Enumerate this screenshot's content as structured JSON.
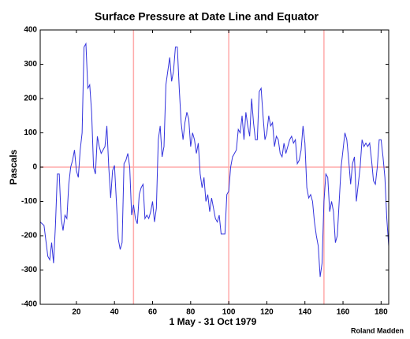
{
  "chart_data": {
    "type": "line",
    "title": "Surface Pressure at Date Line and Equator",
    "x_label": "1 May - 31 Oct 1979",
    "y_label": "Pascals",
    "annotation": "Roland Madden",
    "x": [
      1,
      2,
      3,
      4,
      5,
      6,
      7,
      8,
      9,
      10,
      11,
      12,
      13,
      14,
      15,
      16,
      17,
      18,
      19,
      20,
      21,
      22,
      23,
      24,
      25,
      26,
      27,
      28,
      29,
      30,
      31,
      32,
      33,
      34,
      35,
      36,
      37,
      38,
      39,
      40,
      41,
      42,
      43,
      44,
      45,
      46,
      47,
      48,
      49,
      50,
      51,
      52,
      53,
      54,
      55,
      56,
      57,
      58,
      59,
      60,
      61,
      62,
      63,
      64,
      65,
      66,
      67,
      68,
      69,
      70,
      71,
      72,
      73,
      74,
      75,
      76,
      77,
      78,
      79,
      80,
      81,
      82,
      83,
      84,
      85,
      86,
      87,
      88,
      89,
      90,
      91,
      92,
      93,
      94,
      95,
      96,
      97,
      98,
      99,
      100,
      101,
      102,
      103,
      104,
      105,
      106,
      107,
      108,
      109,
      110,
      111,
      112,
      113,
      114,
      115,
      116,
      117,
      118,
      119,
      120,
      121,
      122,
      123,
      124,
      125,
      126,
      127,
      128,
      129,
      130,
      131,
      132,
      133,
      134,
      135,
      136,
      137,
      138,
      139,
      140,
      141,
      142,
      143,
      144,
      145,
      146,
      147,
      148,
      149,
      150,
      151,
      152,
      153,
      154,
      155,
      156,
      157,
      158,
      159,
      160,
      161,
      162,
      163,
      164,
      165,
      166,
      167,
      168,
      169,
      170,
      171,
      172,
      173,
      174,
      175,
      176,
      177,
      178,
      179,
      180,
      181,
      182,
      183,
      184
    ],
    "series": [
      {
        "color": "#3333dd",
        "values": [
          -160,
          -165,
          -170,
          -215,
          -260,
          -270,
          -220,
          -280,
          -170,
          -20,
          -20,
          -150,
          -185,
          -140,
          -150,
          -50,
          0,
          20,
          50,
          -10,
          -30,
          50,
          100,
          350,
          360,
          230,
          240,
          160,
          0,
          -20,
          90,
          60,
          40,
          50,
          60,
          120,
          0,
          -90,
          -10,
          5,
          -100,
          -210,
          -240,
          -220,
          10,
          20,
          40,
          0,
          -140,
          -110,
          -150,
          -165,
          -80,
          -60,
          -50,
          -150,
          -140,
          -150,
          -130,
          -100,
          -160,
          -120,
          80,
          120,
          30,
          60,
          240,
          280,
          320,
          250,
          280,
          350,
          350,
          230,
          130,
          80,
          130,
          160,
          140,
          60,
          100,
          80,
          40,
          70,
          -20,
          -60,
          -30,
          -100,
          -80,
          -130,
          -90,
          -120,
          -150,
          -160,
          -140,
          -195,
          -195,
          -195,
          -80,
          -70,
          0,
          30,
          40,
          50,
          110,
          100,
          150,
          80,
          160,
          120,
          90,
          200,
          130,
          80,
          80,
          220,
          230,
          150,
          80,
          100,
          150,
          120,
          130,
          60,
          90,
          80,
          40,
          30,
          70,
          40,
          60,
          80,
          90,
          70,
          80,
          10,
          20,
          50,
          120,
          70,
          -60,
          -90,
          -80,
          -100,
          -160,
          -200,
          -230,
          -320,
          -280,
          -100,
          -20,
          -30,
          -130,
          -100,
          -130,
          -220,
          -200,
          -100,
          0,
          50,
          100,
          80,
          20,
          -50,
          10,
          30,
          -100,
          -50,
          0,
          80,
          60,
          70,
          60,
          70,
          20,
          -40,
          -50,
          0,
          80,
          80,
          30,
          -30,
          -150,
          -230
        ]
      }
    ],
    "xlim": [
      1,
      184
    ],
    "ylim": [
      -400,
      400
    ],
    "xticks": [
      20,
      40,
      60,
      80,
      100,
      120,
      140,
      160,
      180
    ],
    "yticks": [
      -400,
      -300,
      -200,
      -100,
      0,
      100,
      200,
      300,
      400
    ],
    "reference_x": [
      50,
      100,
      150
    ],
    "reference_y": [
      0
    ],
    "reference_color": "#ffaaaa"
  }
}
